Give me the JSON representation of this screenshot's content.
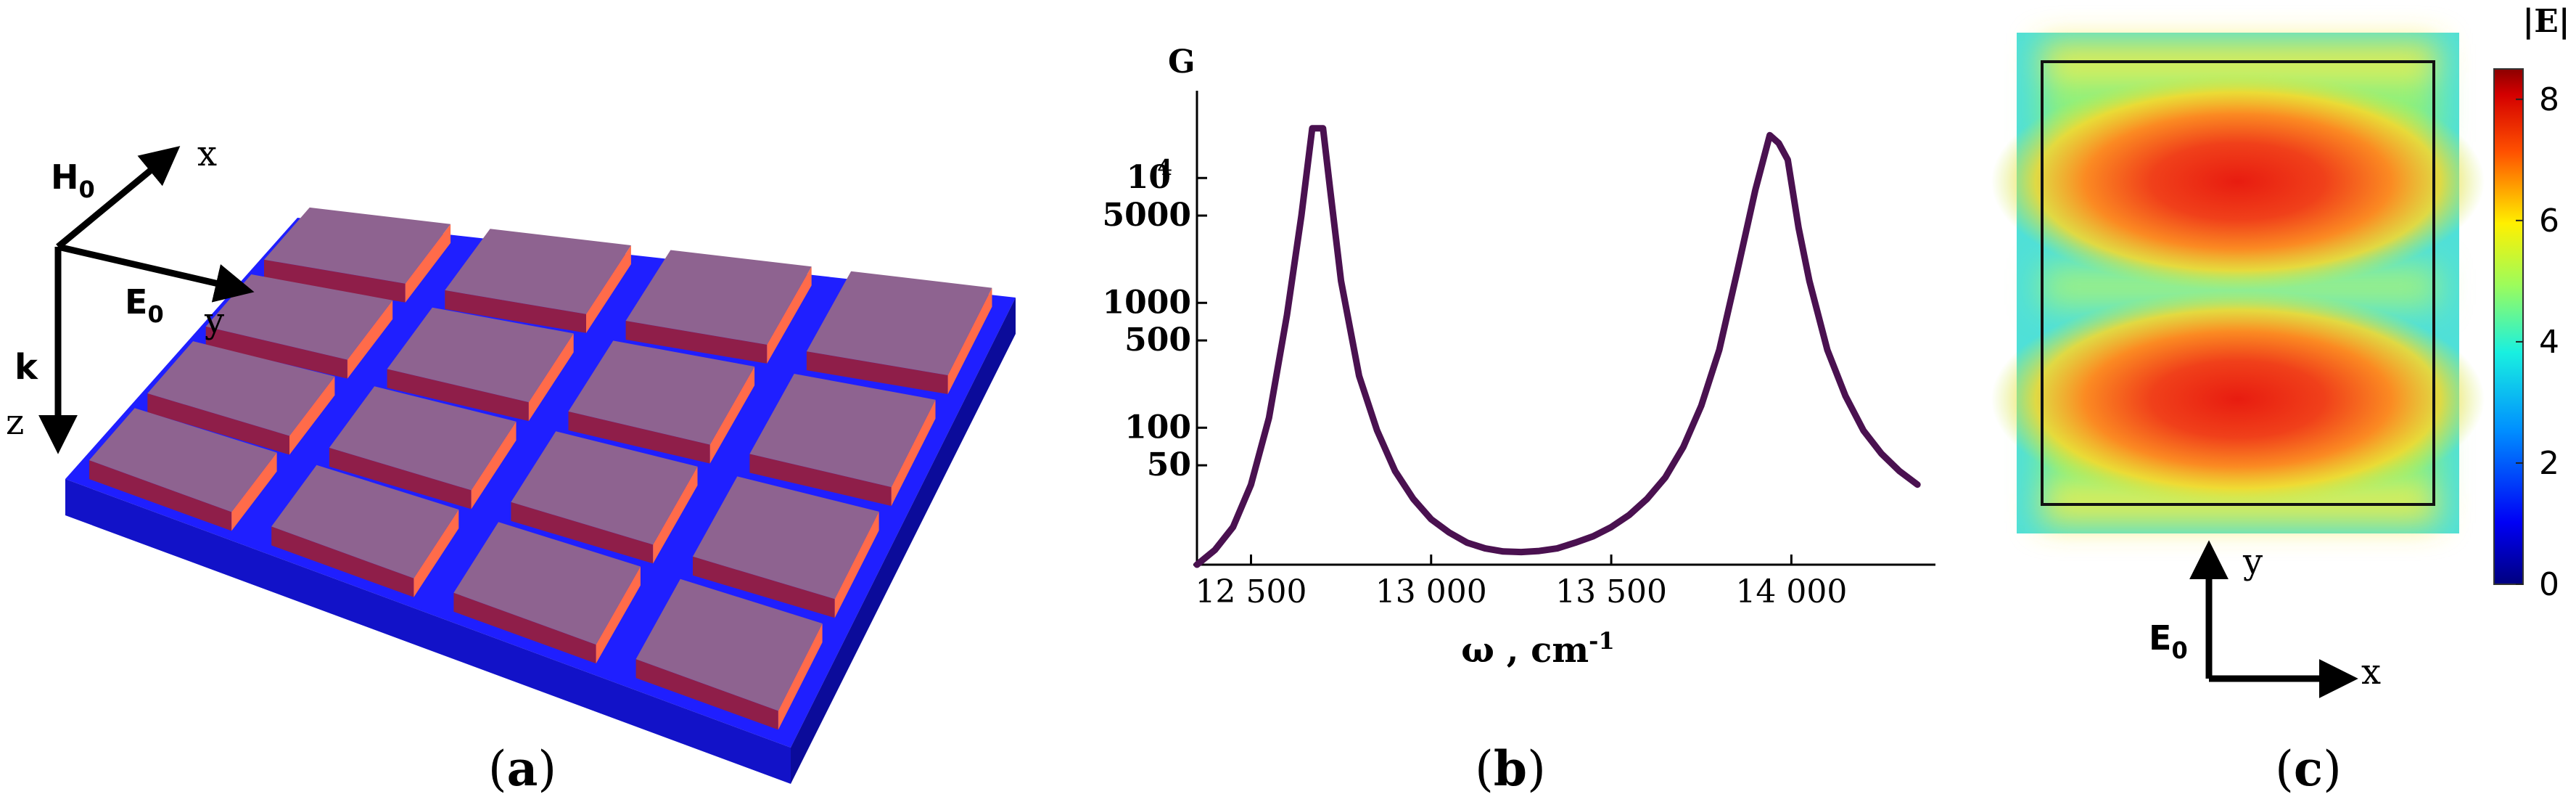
{
  "figure": {
    "panel_a": {
      "caption_open": "(",
      "caption_letter": "a",
      "caption_close": ")",
      "axes": {
        "H_label": "H",
        "H_sub": "0",
        "E_label": "E",
        "E_sub": "0",
        "k_label": "k",
        "x_label": "x",
        "y_label": "y",
        "z_label": "z"
      },
      "colors": {
        "substrate_top": "#1f1fff",
        "substrate_front": "#1212c8",
        "substrate_side": "#0b0b9a",
        "block_top": "#8e6390",
        "block_front": "#8f1e49",
        "block_side": "#ff6b4a"
      }
    },
    "panel_b": {
      "caption_open": "(",
      "caption_letter": "b",
      "caption_close": ")",
      "line_color": "#4a1150"
    },
    "panel_c": {
      "caption_open": "(",
      "caption_letter": "c",
      "caption_close": ")",
      "colorbar_title": "|E|",
      "colorbar_ticks": [
        "0",
        "2",
        "4",
        "6",
        "8"
      ],
      "colorbar_min": 0,
      "colorbar_max": 8.5,
      "axes": {
        "E_label": "E",
        "E_sub": "0",
        "x_label": "x",
        "y_label": "y"
      }
    }
  },
  "chart_data": {
    "type": "line",
    "title": "",
    "xlabel": "ω , cm",
    "xlabel_sup": "-1",
    "ylabel": "G",
    "yscale": "log",
    "xlim": [
      12350,
      14400
    ],
    "ylim": [
      8,
      50000
    ],
    "xticks": [
      {
        "value": 12500,
        "label": "12 500"
      },
      {
        "value": 13000,
        "label": "13 000"
      },
      {
        "value": 13500,
        "label": "13 500"
      },
      {
        "value": 14000,
        "label": "14 000"
      }
    ],
    "yticks": [
      {
        "value": 10000,
        "label": "10",
        "sup": "4"
      },
      {
        "value": 5000,
        "label": "5000",
        "sup": ""
      },
      {
        "value": 1000,
        "label": "1000",
        "sup": ""
      },
      {
        "value": 500,
        "label": "500",
        "sup": ""
      },
      {
        "value": 100,
        "label": "100",
        "sup": ""
      },
      {
        "value": 50,
        "label": "50",
        "sup": ""
      }
    ],
    "series": [
      {
        "name": "G",
        "x": [
          12350,
          12400,
          12450,
          12500,
          12550,
          12600,
          12640,
          12670,
          12700,
          12720,
          12750,
          12800,
          12850,
          12900,
          12950,
          13000,
          13050,
          13100,
          13150,
          13200,
          13250,
          13300,
          13350,
          13400,
          13450,
          13500,
          13550,
          13600,
          13650,
          13700,
          13750,
          13800,
          13850,
          13900,
          13940,
          13965,
          13990,
          14020,
          14050,
          14100,
          14150,
          14200,
          14250,
          14300,
          14350
        ],
        "y": [
          8,
          10.5,
          16,
          35,
          120,
          800,
          5000,
          25000,
          25000,
          8000,
          1500,
          260,
          95,
          45,
          27,
          18.5,
          14.5,
          12,
          10.8,
          10.2,
          10.1,
          10.3,
          10.8,
          12,
          13.5,
          16,
          20,
          27,
          40,
          70,
          150,
          420,
          1800,
          8000,
          22000,
          19000,
          14000,
          4000,
          1500,
          420,
          180,
          95,
          62,
          45,
          35
        ]
      }
    ]
  }
}
